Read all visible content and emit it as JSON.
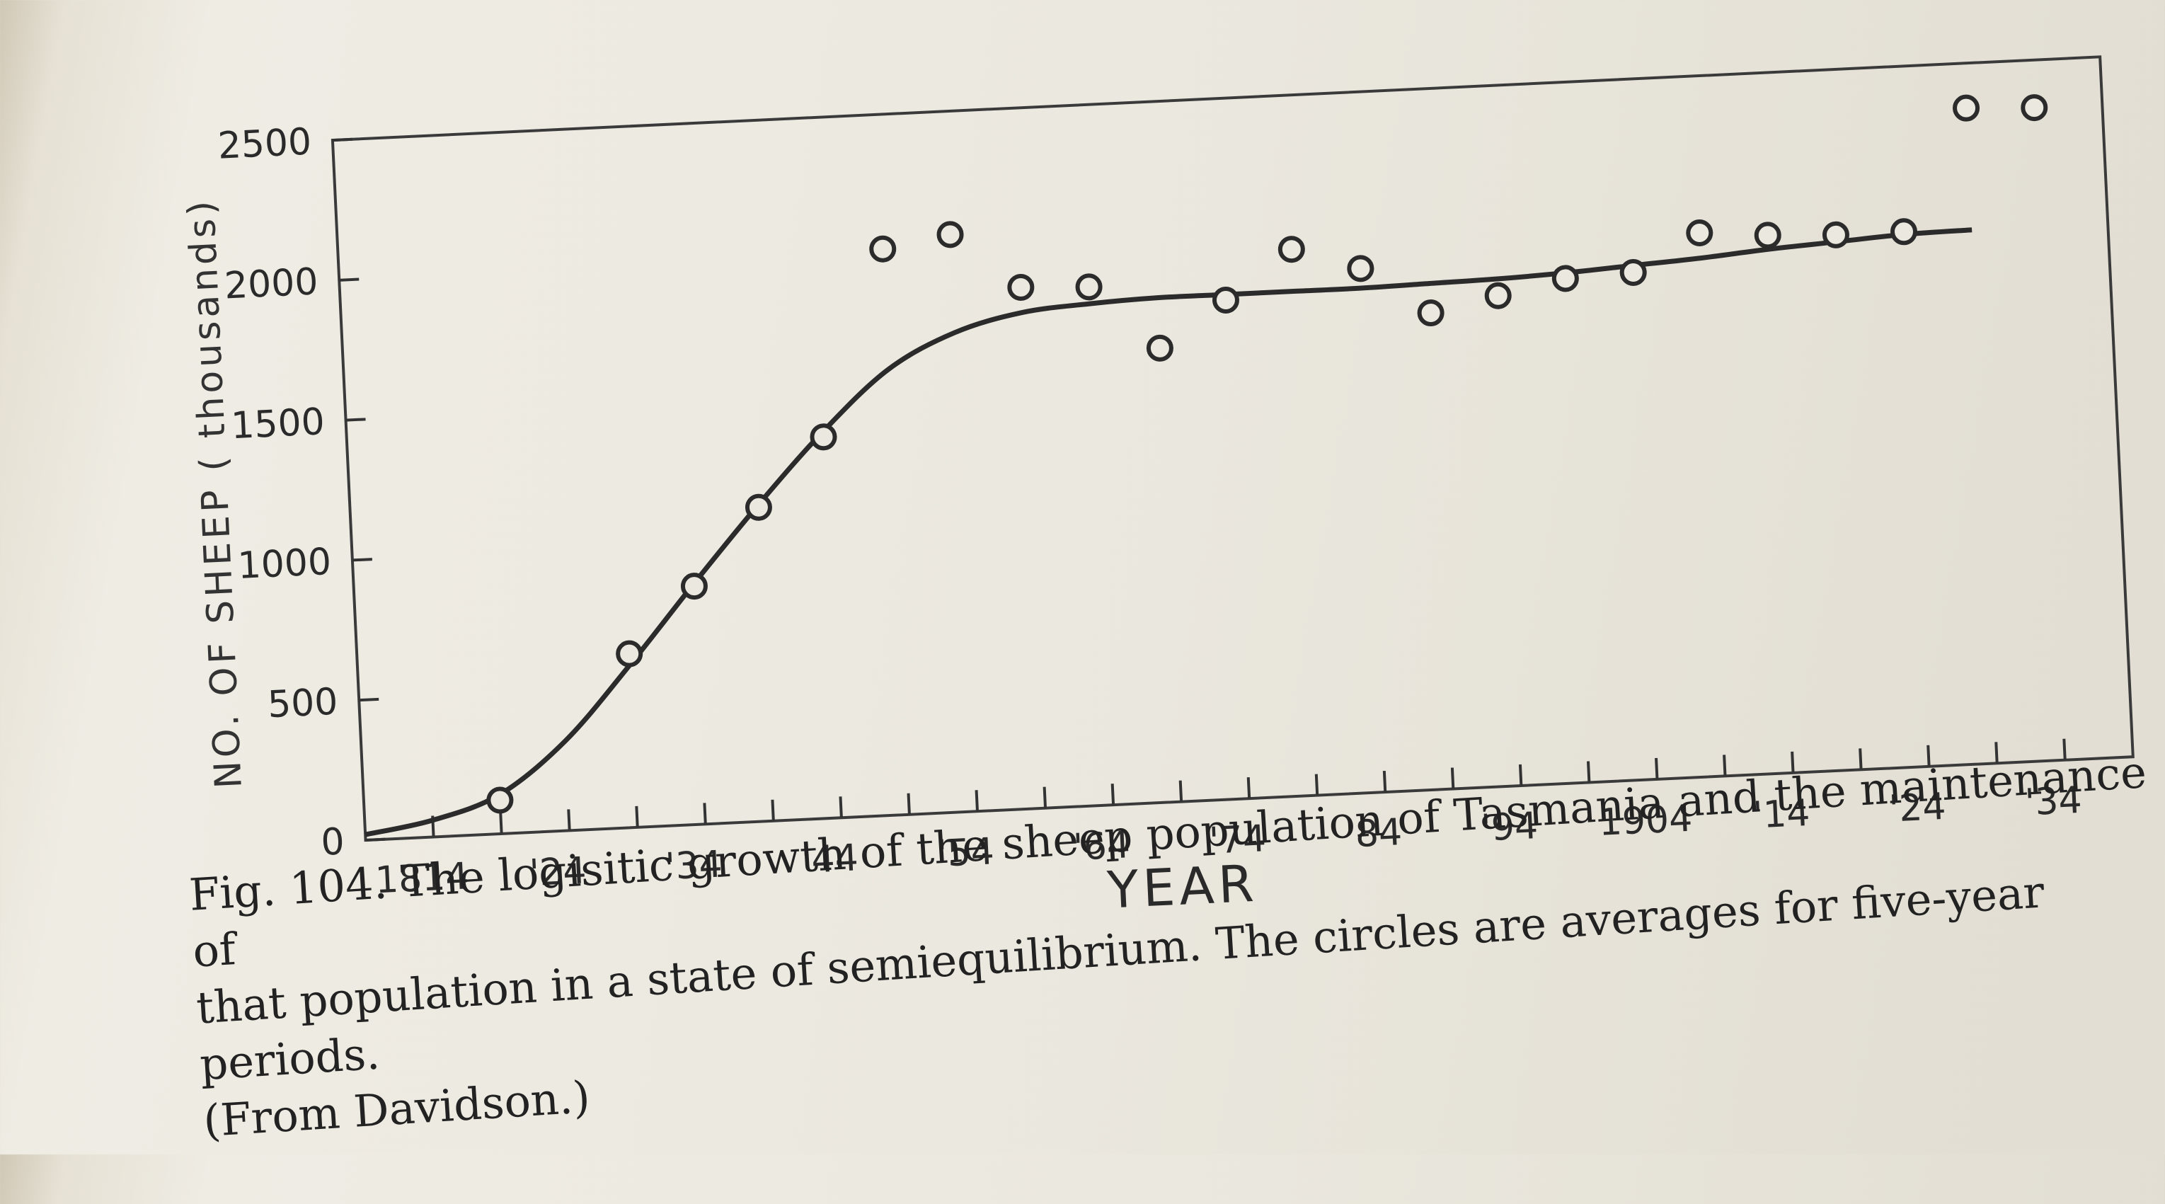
{
  "chart_data": {
    "type": "scatter",
    "xlabel": "YEAR",
    "ylabel": "NO. OF SHEEP ( thousands)",
    "xlim": [
      1810,
      1940
    ],
    "ylim": [
      0,
      2500
    ],
    "yticks": [
      0,
      500,
      1000,
      1500,
      2000,
      2500
    ],
    "xtick_labels": [
      {
        "x": 1814,
        "label": "1814"
      },
      {
        "x": 1824,
        "label": "'24"
      },
      {
        "x": 1834,
        "label": "'34"
      },
      {
        "x": 1844,
        "label": "'44"
      },
      {
        "x": 1854,
        "label": "'54"
      },
      {
        "x": 1864,
        "label": "'64"
      },
      {
        "x": 1874,
        "label": "'74"
      },
      {
        "x": 1884,
        "label": "'84"
      },
      {
        "x": 1894,
        "label": "'94"
      },
      {
        "x": 1904,
        "label": "1904"
      },
      {
        "x": 1914,
        "label": "'14"
      },
      {
        "x": 1924,
        "label": "'24"
      },
      {
        "x": 1934,
        "label": "'34"
      }
    ],
    "series": [
      {
        "type": "scatter",
        "x": [
          1820,
          1830,
          1835,
          1840,
          1845,
          1850,
          1855,
          1860,
          1865,
          1870,
          1875,
          1880,
          1885,
          1890,
          1895,
          1900,
          1905,
          1910,
          1915,
          1920,
          1925,
          1930,
          1935
        ],
        "y": [
          120,
          620,
          850,
          1120,
          1360,
          2020,
          2060,
          1860,
          1850,
          1620,
          1780,
          1950,
          1870,
          1700,
          1750,
          1800,
          1810,
          1940,
          1920,
          1910,
          1910,
          2340,
          2330
        ]
      },
      {
        "type": "line",
        "x": [
          1810,
          1815,
          1820,
          1825,
          1830,
          1835,
          1840,
          1845,
          1850,
          1855,
          1860,
          1865,
          1870,
          1875,
          1880,
          1885,
          1890,
          1895,
          1900,
          1905,
          1910,
          1915,
          1920,
          1925,
          1930
        ],
        "y": [
          20,
          60,
          140,
          320,
          580,
          860,
          1130,
          1380,
          1590,
          1710,
          1770,
          1790,
          1800,
          1800,
          1800,
          1800,
          1805,
          1810,
          1820,
          1835,
          1850,
          1870,
          1885,
          1900,
          1905
        ]
      }
    ]
  },
  "caption": {
    "line1": "Fig. 104. The logisitic growth of the sheep population of Tasmania and the maintenance of",
    "line2": "that population in a state of semiequilibrium. The circles are averages for five-year periods.",
    "line3": "(From Davidson.)"
  }
}
